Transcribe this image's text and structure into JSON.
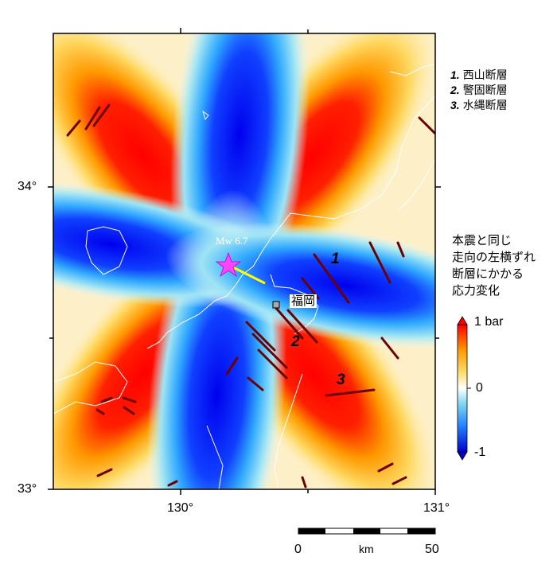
{
  "map": {
    "lat_labels": [
      "34°",
      "33°"
    ],
    "lon_labels": [
      "130°",
      "131°"
    ],
    "city": "福岡",
    "mainshock_label": "Mw 6.7",
    "fault_numbers": [
      "1",
      "2",
      "3"
    ]
  },
  "legend": {
    "faults": [
      {
        "num": "1.",
        "name": "西山断層"
      },
      {
        "num": "2.",
        "name": "警固断層"
      },
      {
        "num": "3.",
        "name": "水縄断層"
      }
    ],
    "stress_title_lines": [
      "本震と同じ",
      "走向の左横ずれ",
      "断層にかかる",
      "応力変化"
    ],
    "colorbar_max": "1 bar",
    "colorbar_mid": "0",
    "colorbar_min": "-1"
  },
  "scale": {
    "start": "0",
    "unit": "km",
    "end": "50"
  },
  "colors": {
    "positive": "#ff0000",
    "negative": "#0000ff",
    "neutral": "#ffffff",
    "fault": "#6b0000",
    "star": "#ff44ff",
    "rupture": "#ffff00"
  }
}
